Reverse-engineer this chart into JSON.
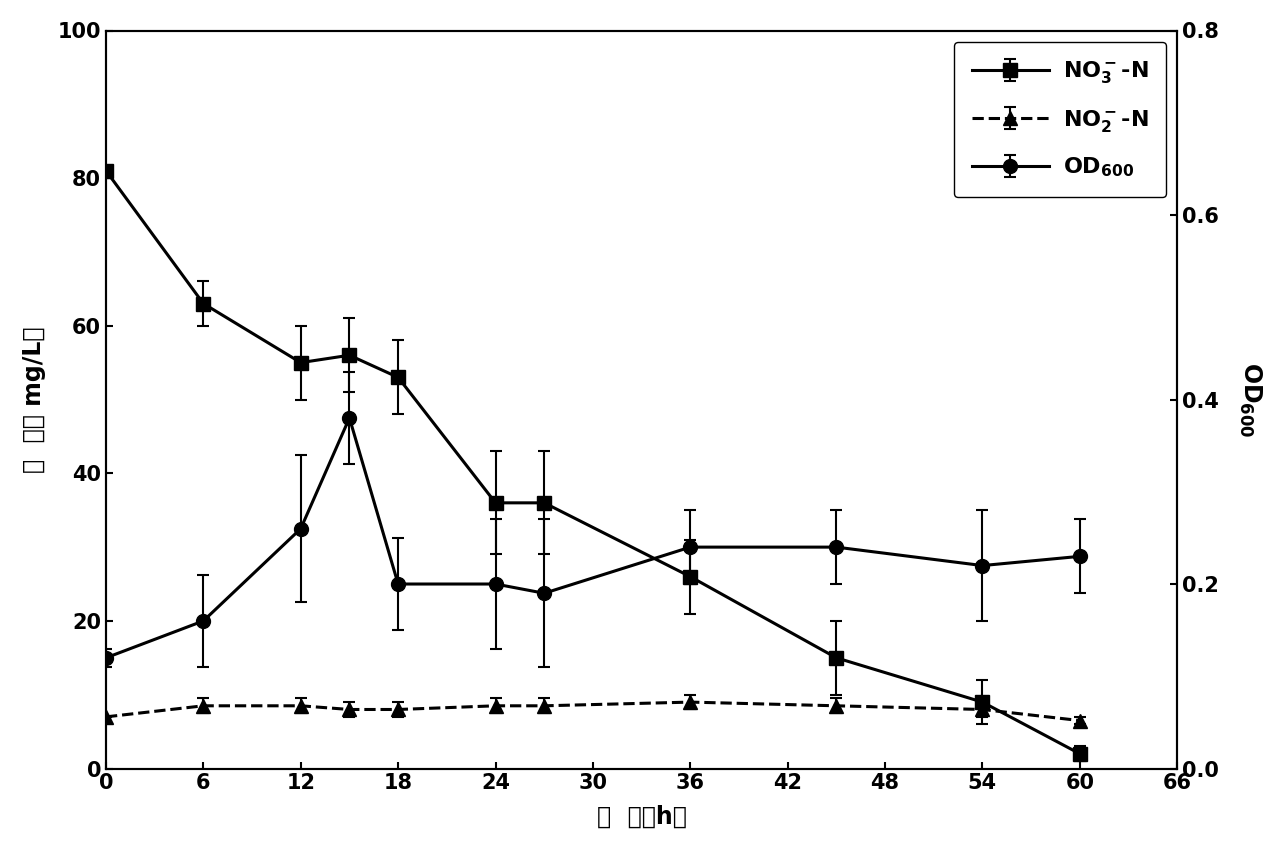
{
  "time": [
    0,
    6,
    12,
    15,
    18,
    24,
    27,
    36,
    45,
    54,
    60
  ],
  "no3_n": [
    81,
    63,
    55,
    56,
    53,
    36,
    36,
    26,
    15,
    9,
    2
  ],
  "no3_n_err": [
    0,
    3,
    5,
    5,
    5,
    7,
    7,
    5,
    5,
    3,
    1
  ],
  "no2_n": [
    7,
    8.5,
    8.5,
    8,
    8,
    8.5,
    8.5,
    9,
    8.5,
    8,
    6.5
  ],
  "no2_n_err": [
    0,
    1,
    1,
    1,
    1,
    1,
    1,
    1,
    1,
    1,
    0.5
  ],
  "od600": [
    0.12,
    0.16,
    0.26,
    0.38,
    0.2,
    0.2,
    0.19,
    0.24,
    0.24,
    0.22,
    0.23
  ],
  "od600_err": [
    0.01,
    0.05,
    0.08,
    0.05,
    0.05,
    0.07,
    0.08,
    0.04,
    0.04,
    0.06,
    0.04
  ],
  "xlabel": "时  间（h）",
  "ylabel_left": "浓  度（ mg/L）",
  "ylabel_right": "OD",
  "ylabel_right_sub": "600",
  "xlim": [
    0,
    66
  ],
  "ylim_left": [
    0,
    100
  ],
  "ylim_right": [
    0.0,
    0.8
  ],
  "xticks": [
    0,
    6,
    12,
    18,
    24,
    30,
    36,
    42,
    48,
    54,
    60,
    66
  ],
  "yticks_left": [
    0,
    20,
    40,
    60,
    80,
    100
  ],
  "yticks_right": [
    0.0,
    0.2,
    0.4,
    0.6,
    0.8
  ],
  "line_color": "#000000",
  "bg_color": "#ffffff",
  "linewidth": 2.2,
  "markersize": 10
}
